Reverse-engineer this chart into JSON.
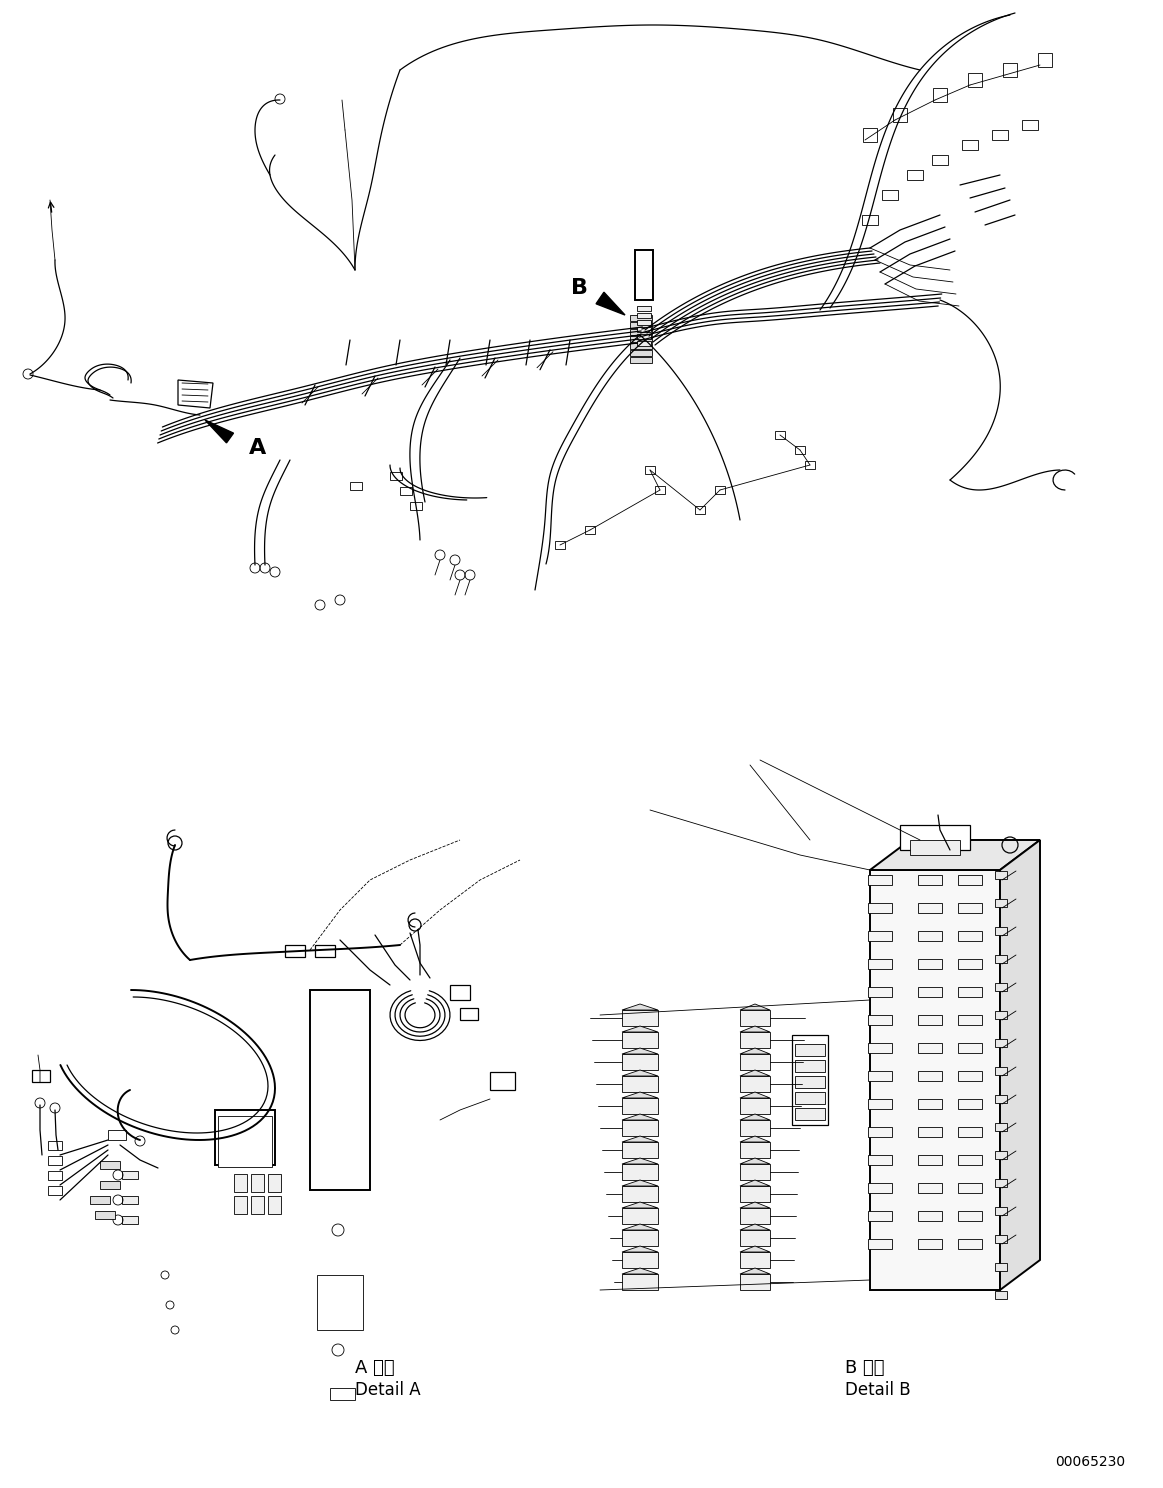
{
  "background_color": "#ffffff",
  "line_color": "#000000",
  "figure_width": 11.63,
  "figure_height": 14.88,
  "dpi": 100,
  "label_A": "A",
  "label_B": "B",
  "detail_a_line1": "A 詳細",
  "detail_a_line2": "Detail A",
  "detail_b_line1": "B 詳細",
  "detail_b_line2": "Detail B",
  "part_number": "00065230",
  "font_size_labels": 16,
  "font_size_detail": 13,
  "font_size_partnum": 10
}
